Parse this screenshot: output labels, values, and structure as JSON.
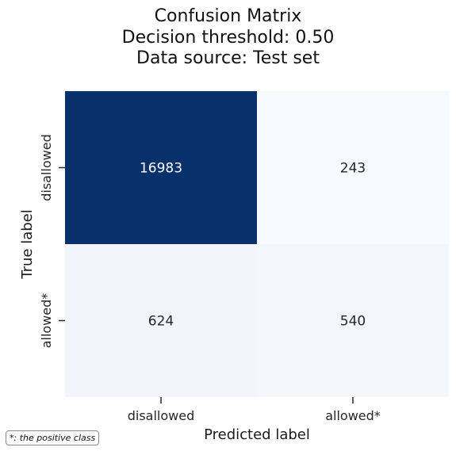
{
  "chart_data": {
    "type": "heatmap",
    "title_lines": [
      "Confusion Matrix",
      "Decision threshold: 0.50",
      "Data source: Test set"
    ],
    "xlabel": "Predicted label",
    "ylabel": "True label",
    "x_categories": [
      "disallowed",
      "allowed*"
    ],
    "y_categories": [
      "disallowed",
      "allowed*"
    ],
    "values": [
      [
        16983,
        243
      ],
      [
        624,
        540
      ]
    ],
    "colormap": {
      "low": "#f7fbff",
      "high": "#08306b"
    },
    "colorbar": false,
    "footnote": "*: the positive class"
  }
}
